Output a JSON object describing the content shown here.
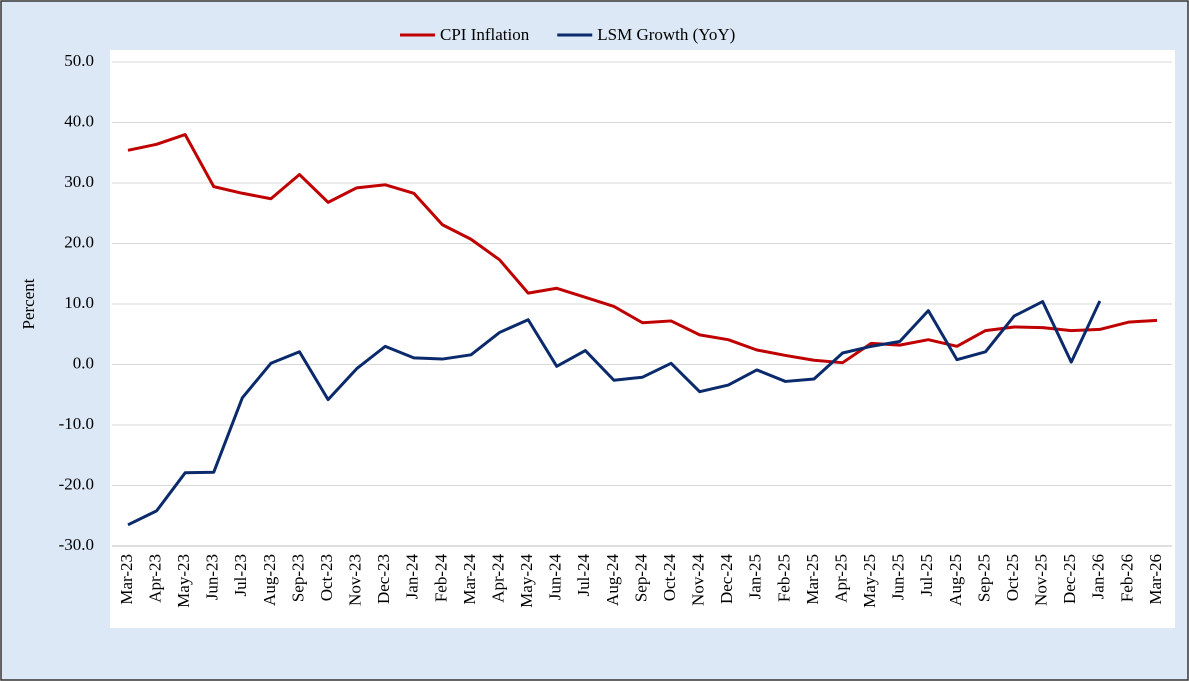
{
  "chart_data": {
    "type": "line",
    "y_label": "Percent",
    "categories": [
      "Mar-23",
      "Apr-23",
      "May-23",
      "Jun-23",
      "Jul-23",
      "Aug-23",
      "Sep-23",
      "Oct-23",
      "Nov-23",
      "Dec-23",
      "Jan-24",
      "Feb-24",
      "Mar-24",
      "Apr-24",
      "May-24",
      "Jun-24",
      "Jul-24",
      "Aug-24",
      "Sep-24",
      "Oct-24",
      "Nov-24",
      "Dec-24",
      "Jan-25",
      "Feb-25",
      "Mar-25",
      "Apr-25",
      "May-25",
      "Jun-25",
      "Jul-25",
      "Aug-25",
      "Sep-25",
      "Oct-25",
      "Nov-25",
      "Dec-25",
      "Jan-26",
      "Feb-26",
      "Mar-26"
    ],
    "series": [
      {
        "name": "CPI Inflation",
        "color": "#c00000",
        "values": [
          35.4,
          36.4,
          38.0,
          29.4,
          28.3,
          27.4,
          31.4,
          26.8,
          29.2,
          29.7,
          28.3,
          23.1,
          20.7,
          17.3,
          11.8,
          12.6,
          11.1,
          9.6,
          6.9,
          7.2,
          4.9,
          4.1,
          2.4,
          1.5,
          0.7,
          0.3,
          3.5,
          3.2,
          4.1,
          3.0,
          5.6,
          6.2,
          6.1,
          5.6,
          5.8,
          7.0,
          7.3
        ]
      },
      {
        "name": "LSM Growth (YoY)",
        "color": "#0b2a6b",
        "values": [
          -26.5,
          -24.2,
          -17.9,
          -17.8,
          -5.5,
          0.2,
          2.1,
          -5.8,
          -0.7,
          3.0,
          1.1,
          0.9,
          1.6,
          5.3,
          7.4,
          -0.3,
          2.3,
          -2.6,
          -2.1,
          0.2,
          -4.5,
          -3.4,
          -0.9,
          -2.8,
          -2.4,
          1.9,
          3.0,
          3.8,
          8.9,
          0.8,
          2.1,
          8.0,
          10.4,
          0.4,
          10.5,
          null,
          null
        ]
      }
    ],
    "ylim": [
      -30,
      50
    ],
    "yticks": [
      {
        "value": -30,
        "label": "-30.0"
      },
      {
        "value": -20,
        "label": "-20.0"
      },
      {
        "value": -10,
        "label": "-10.0"
      },
      {
        "value": 0,
        "label": "0.0"
      },
      {
        "value": 10,
        "label": "10.0"
      },
      {
        "value": 20,
        "label": "20.0"
      },
      {
        "value": 30,
        "label": "30.0"
      },
      {
        "value": 40,
        "label": "40.0"
      },
      {
        "value": 50,
        "label": "50.0"
      }
    ],
    "grid": true,
    "legend": "top"
  }
}
